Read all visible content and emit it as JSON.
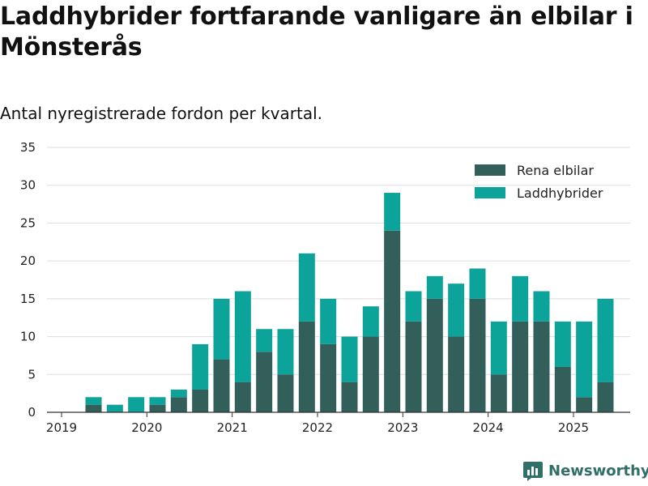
{
  "title": "Laddhybrider fortfarande vanligare än elbilar i Mönsterås",
  "subtitle": "Antal nyregistrerade fordon per kvartal.",
  "brand": "Newsworthy",
  "colors": {
    "rena_elbilar": "#335f5b",
    "laddhybrider": "#0ca39a",
    "grid": "#dddddd",
    "axis": "#333333"
  },
  "chart_data": {
    "type": "bar",
    "stacked": true,
    "x_tick_labels": [
      "2019",
      "2020",
      "2021",
      "2022",
      "2023",
      "2024",
      "2025"
    ],
    "x_tick_values": [
      2019,
      2020,
      2021,
      2022,
      2023,
      2024,
      2025
    ],
    "y_ticks": [
      0,
      5,
      10,
      15,
      20,
      25,
      30,
      35
    ],
    "ylim": [
      0,
      35
    ],
    "grid": true,
    "legend_position": "top-right",
    "quarters": [
      "2019-Q2",
      "2019-Q3",
      "2019-Q4",
      "2020-Q1",
      "2020-Q2",
      "2020-Q3",
      "2020-Q4",
      "2021-Q1",
      "2021-Q2",
      "2021-Q3",
      "2021-Q4",
      "2022-Q1",
      "2022-Q2",
      "2022-Q3",
      "2022-Q4",
      "2023-Q1",
      "2023-Q2",
      "2023-Q3",
      "2023-Q4",
      "2024-Q1",
      "2024-Q2",
      "2024-Q3",
      "2024-Q4",
      "2025-Q1",
      "2025-Q2"
    ],
    "series": [
      {
        "name": "Rena elbilar",
        "values": [
          1,
          0,
          0,
          1,
          2,
          3,
          7,
          4,
          8,
          5,
          12,
          9,
          4,
          10,
          24,
          12,
          15,
          10,
          15,
          5,
          12,
          12,
          6,
          2,
          4
        ]
      },
      {
        "name": "Laddhybrider",
        "values": [
          1,
          1,
          2,
          1,
          1,
          6,
          8,
          12,
          3,
          6,
          9,
          6,
          6,
          4,
          5,
          4,
          3,
          7,
          4,
          7,
          6,
          4,
          6,
          10,
          11
        ]
      }
    ]
  }
}
